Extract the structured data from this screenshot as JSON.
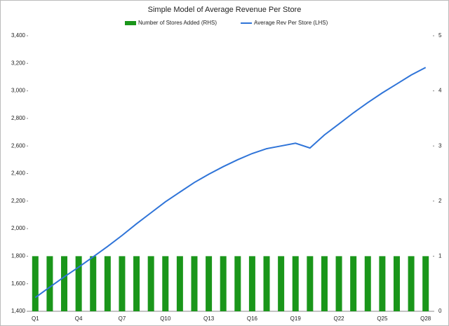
{
  "chart_data": {
    "type": "bar+line",
    "title": "Simple Model of Average Revenue  Per Store",
    "categories": [
      "Q1",
      null,
      null,
      "Q4",
      null,
      null,
      "Q7",
      null,
      null,
      "Q10",
      null,
      null,
      "Q13",
      null,
      null,
      "Q16",
      null,
      null,
      "Q19",
      null,
      null,
      "Q22",
      null,
      null,
      "Q25",
      null,
      null,
      "Q28"
    ],
    "series": [
      {
        "name": "Number of Stores Added (RHS)",
        "type": "bar",
        "axis": "y2",
        "color": "#1a961a",
        "values": [
          1,
          1,
          1,
          1,
          1,
          1,
          1,
          1,
          1,
          1,
          1,
          1,
          1,
          1,
          1,
          1,
          1,
          1,
          1,
          1,
          1,
          1,
          1,
          1,
          1,
          1,
          1,
          1
        ]
      },
      {
        "name": "Average Rev Per Store (LHS)",
        "type": "line",
        "color": "#2f74d8",
        "values": [
          1500,
          1575,
          1650,
          1720,
          1795,
          1870,
          1950,
          2035,
          2115,
          2195,
          2265,
          2335,
          2395,
          2450,
          2500,
          2545,
          2580,
          2600,
          2620,
          2585,
          2680,
          2760,
          2840,
          2915,
          2985,
          3050,
          3115,
          3170
        ]
      }
    ],
    "ylim": [
      1400,
      3400
    ],
    "yticks": [
      {
        "value": 1400,
        "label": "1,400"
      },
      {
        "value": 1600,
        "label": "1,600"
      },
      {
        "value": 1800,
        "label": "1,800"
      },
      {
        "value": 2000,
        "label": "2,000"
      },
      {
        "value": 2200,
        "label": "2,200"
      },
      {
        "value": 2400,
        "label": "2,400"
      },
      {
        "value": 2600,
        "label": "2,600"
      },
      {
        "value": 2800,
        "label": "2,800"
      },
      {
        "value": 3000,
        "label": "3,000"
      },
      {
        "value": 3200,
        "label": "3,200"
      },
      {
        "value": 3400,
        "label": "3,400"
      }
    ],
    "y2lim": [
      0,
      5
    ],
    "y2ticks": [
      0,
      1,
      2,
      3,
      4,
      5
    ],
    "legend": "top",
    "grid": false
  }
}
